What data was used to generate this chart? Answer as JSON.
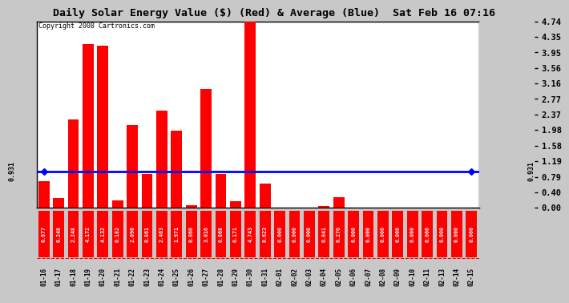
{
  "title": "Daily Solar Energy Value ($) (Red) & Average (Blue)  Sat Feb 16 07:16",
  "copyright": "Copyright 2008 Cartronics.com",
  "categories": [
    "01-16",
    "01-17",
    "01-18",
    "01-19",
    "01-20",
    "01-21",
    "01-22",
    "01-23",
    "01-24",
    "01-25",
    "01-26",
    "01-27",
    "01-28",
    "01-29",
    "01-30",
    "01-31",
    "02-01",
    "02-02",
    "02-03",
    "02-04",
    "02-05",
    "02-06",
    "02-07",
    "02-08",
    "02-09",
    "02-10",
    "02-11",
    "02-13",
    "02-14",
    "02-15"
  ],
  "values": [
    0.677,
    0.248,
    2.248,
    4.172,
    4.132,
    0.182,
    2.096,
    0.861,
    2.463,
    1.971,
    0.06,
    3.016,
    0.868,
    0.171,
    4.743,
    0.623,
    0.0,
    0.0,
    0.0,
    0.041,
    0.276,
    0.0,
    0.0,
    0.0,
    0.0,
    0.0,
    0.0,
    0.0,
    0.0,
    0.0
  ],
  "average": 0.931,
  "yticks": [
    0.0,
    0.4,
    0.79,
    1.19,
    1.58,
    1.98,
    2.37,
    2.77,
    3.16,
    3.56,
    3.95,
    4.35,
    4.74
  ],
  "ymax": 4.74,
  "bar_color": "#FF0000",
  "avg_color": "#0000FF",
  "bg_color": "#C8C8C8",
  "plot_bg": "#FFFFFF",
  "grid_color": "#FFFFFF",
  "title_fontsize": 9.5,
  "copy_fontsize": 6.0,
  "tick_fontsize": 7.5,
  "val_fontsize": 4.8,
  "cat_fontsize": 5.5
}
